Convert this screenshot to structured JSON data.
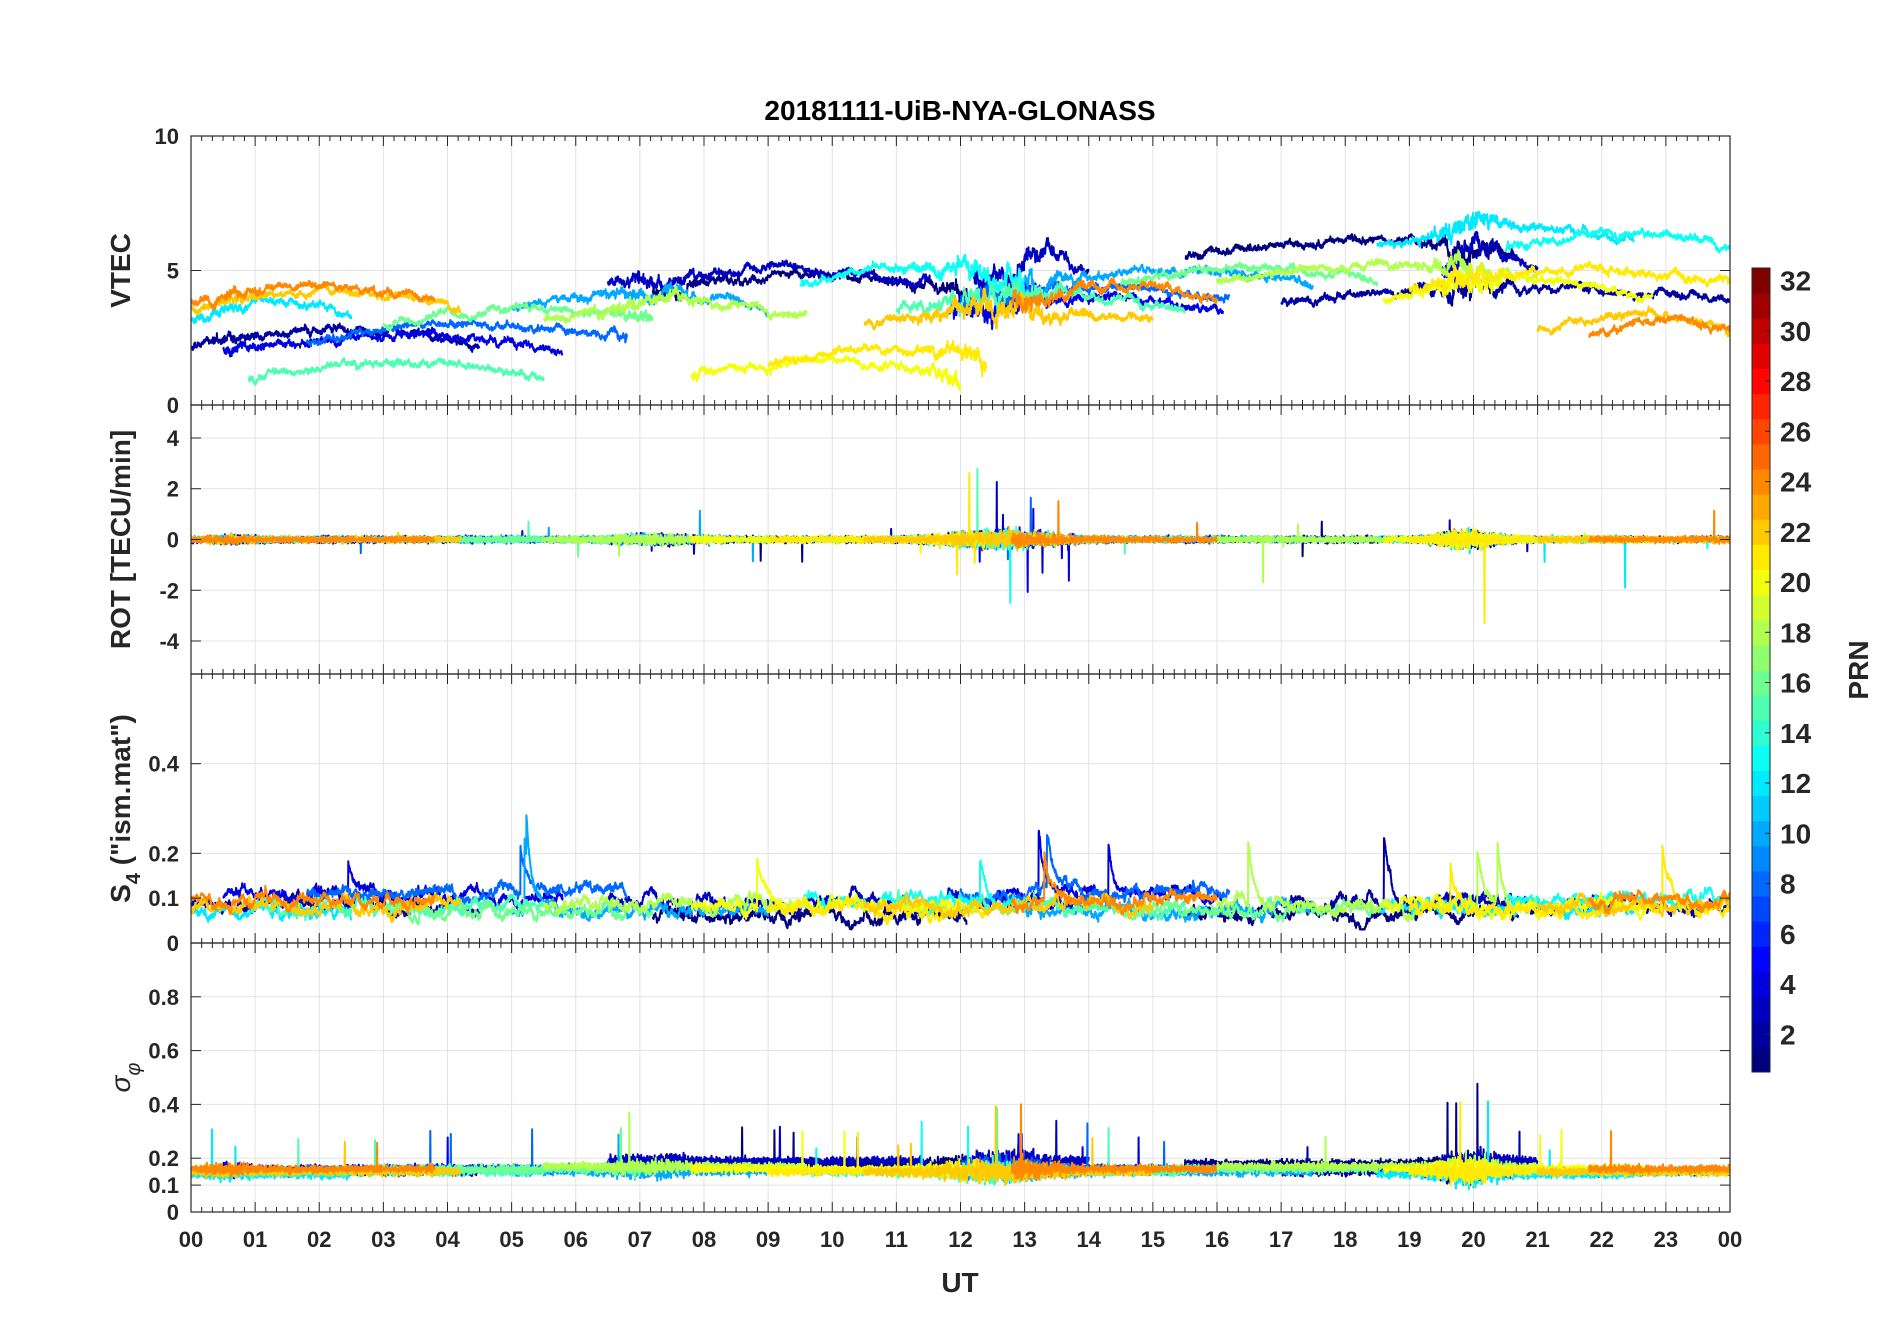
{
  "chart_data": {
    "type": "line",
    "title": "20181111-UiB-NYA-GLONASS",
    "xlabel": "UT",
    "x_tick_labels": [
      "00",
      "01",
      "02",
      "03",
      "04",
      "05",
      "06",
      "07",
      "08",
      "09",
      "10",
      "11",
      "12",
      "13",
      "14",
      "15",
      "16",
      "17",
      "18",
      "19",
      "20",
      "21",
      "22",
      "23",
      "00"
    ],
    "xlim_hours": [
      0,
      24
    ],
    "panels": [
      {
        "id": "vtec",
        "ylabel": "VTEC",
        "ylim": [
          0,
          10
        ],
        "yticks": [
          0,
          5,
          10
        ],
        "y_tick_labels": [
          "0",
          "5",
          "10"
        ]
      },
      {
        "id": "rot",
        "ylabel": "ROT [TECU/min]",
        "ylim": [
          -5.3,
          5.3
        ],
        "yticks": [
          -4,
          -2,
          0,
          2,
          4
        ],
        "y_tick_labels": [
          "-4",
          "-2",
          "0",
          "2",
          "4"
        ]
      },
      {
        "id": "s4",
        "ylabel_main": "S",
        "ylabel_sub": "4",
        "ylabel_rest": " (\"ism.mat\")",
        "ylim": [
          0,
          0.6
        ],
        "yticks": [
          0,
          0.1,
          0.2,
          0.4
        ],
        "y_tick_labels": [
          "0",
          "0.1",
          "0.2",
          "0.4"
        ]
      },
      {
        "id": "sigma",
        "ylabel_main": "σ",
        "ylabel_sub": "φ",
        "ylim": [
          0,
          1
        ],
        "yticks": [
          0,
          0.1,
          0.2,
          0.4,
          0.6,
          0.8
        ],
        "y_tick_labels": [
          "0",
          "0.1",
          "0.2",
          "0.4",
          "0.6",
          "0.8"
        ]
      }
    ],
    "colorbar": {
      "label": "PRN",
      "range": [
        1,
        32
      ],
      "ticks": [
        2,
        4,
        6,
        8,
        10,
        12,
        14,
        16,
        18,
        20,
        22,
        24,
        26,
        28,
        30,
        32
      ],
      "tick_labels": [
        "2",
        "4",
        "6",
        "8",
        "10",
        "12",
        "14",
        "16",
        "18",
        "20",
        "22",
        "24",
        "26",
        "28",
        "30",
        "32"
      ],
      "colormap": "jet"
    },
    "series": [
      {
        "prn": 1,
        "segments": [
          [
            7.2,
            12.1
          ],
          [
            15.5,
            20.7
          ]
        ],
        "vtec_base": [
          4.2,
          5.5,
          3.5
        ],
        "s4_base": 0.06,
        "sigma_base": 0.18
      },
      {
        "prn": 2,
        "segments": [
          [
            0,
            4.5
          ],
          [
            17.0,
            24
          ]
        ],
        "vtec_base": [
          2.2,
          3.8,
          1.2
        ],
        "s4_base": 0.08,
        "sigma_base": 0.15
      },
      {
        "prn": 3,
        "segments": [
          [
            6.5,
            11.5
          ],
          [
            12.2,
            14.0
          ],
          [
            19.5,
            21.0
          ]
        ],
        "vtec_base": [
          4.5,
          4.8,
          5.0
        ],
        "s4_base": 0.09,
        "sigma_base": 0.19
      },
      {
        "prn": 4,
        "segments": [
          [
            0.5,
            5.8
          ],
          [
            11.8,
            16.1
          ]
        ],
        "vtec_base": [
          2.0,
          3.4,
          2.6
        ],
        "s4_base": 0.1,
        "sigma_base": 0.16
      },
      {
        "prn": 8,
        "segments": [
          [
            1.8,
            6.8
          ],
          [
            12.0,
            16.2
          ]
        ],
        "vtec_base": [
          2.4,
          3.8,
          2.0
        ],
        "s4_base": 0.11,
        "sigma_base": 0.16
      },
      {
        "prn": 10,
        "segments": [
          [
            5.0,
            9.0
          ],
          [
            13.0,
            17.5
          ]
        ],
        "vtec_base": [
          3.6,
          4.4,
          3.8
        ],
        "s4_base": 0.07,
        "sigma_base": 0.15
      },
      {
        "prn": 12,
        "segments": [
          [
            0,
            2.5
          ],
          [
            18.5,
            22.5
          ]
        ],
        "vtec_base": [
          3.2,
          6.0,
          2.8
        ],
        "s4_base": 0.07,
        "sigma_base": 0.14
      },
      {
        "prn": 13,
        "segments": [
          [
            9.5,
            13.0
          ],
          [
            20.5,
            24
          ]
        ],
        "vtec_base": [
          4.5,
          5.8,
          3.0
        ],
        "s4_base": 0.09,
        "sigma_base": 0.15
      },
      {
        "prn": 15,
        "segments": [
          [
            0.9,
            5.5
          ],
          [
            11.0,
            15.5
          ]
        ],
        "vtec_base": [
          1.0,
          3.5,
          3.8
        ],
        "s4_base": 0.08,
        "sigma_base": 0.15
      },
      {
        "prn": 16,
        "segments": [
          [
            3.0,
            7.2
          ],
          [
            14.5,
            18.5
          ]
        ],
        "vtec_base": [
          3.0,
          4.5,
          4.2
        ],
        "s4_base": 0.07,
        "sigma_base": 0.16
      },
      {
        "prn": 18,
        "segments": [
          [
            5.5,
            9.6
          ],
          [
            16.0,
            21.0
          ]
        ],
        "vtec_base": [
          3.2,
          4.6,
          3.8
        ],
        "s4_base": 0.08,
        "sigma_base": 0.17
      },
      {
        "prn": 20,
        "segments": [
          [
            7.8,
            12.0
          ],
          [
            18.6,
            22.8
          ]
        ],
        "vtec_base": [
          1.0,
          4.0,
          3.6
        ],
        "s4_base": 0.08,
        "sigma_base": 0.16
      },
      {
        "prn": 21,
        "segments": [
          [
            9.0,
            12.4
          ],
          [
            19.0,
            24
          ]
        ],
        "vtec_base": [
          1.5,
          4.4,
          2.6
        ],
        "s4_base": 0.07,
        "sigma_base": 0.15
      },
      {
        "prn": 22,
        "segments": [
          [
            0,
            4.2
          ],
          [
            10.5,
            15.0
          ],
          [
            21.0,
            24
          ]
        ],
        "vtec_base": [
          3.6,
          3.0,
          2.8
        ],
        "s4_base": 0.08,
        "sigma_base": 0.15
      },
      {
        "prn": 24,
        "segments": [
          [
            0,
            3.8
          ],
          [
            12.8,
            16.0
          ],
          [
            21.8,
            24
          ]
        ],
        "vtec_base": [
          3.8,
          3.8,
          2.6
        ],
        "s4_base": 0.09,
        "sigma_base": 0.16
      }
    ]
  }
}
